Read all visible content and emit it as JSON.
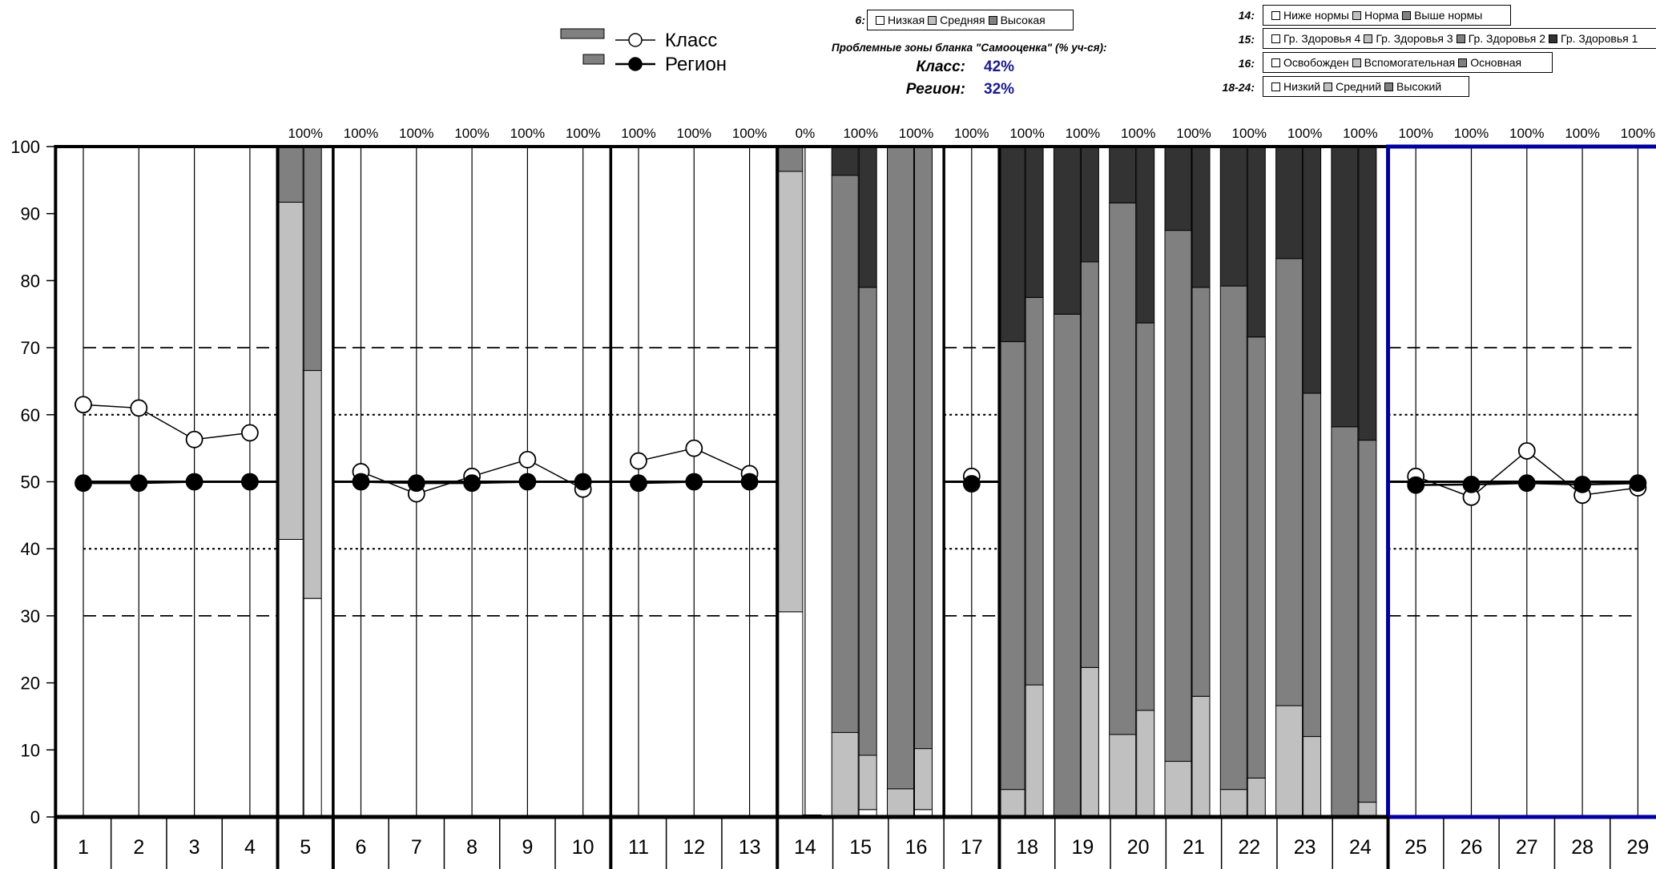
{
  "legend_main": {
    "class_label": "Класс",
    "region_label": "Регион"
  },
  "header": {
    "title": "Проблемные зоны бланка \"Самооценка\" (% уч-ся):",
    "class_label": "Класс:",
    "class_value": "42%",
    "region_label": "Регион:",
    "region_value": "32%"
  },
  "legend_groups": [
    {
      "key": "6:",
      "items": [
        "Низкая",
        "Средняя",
        "Высокая"
      ]
    },
    {
      "key": "14:",
      "items": [
        "Ниже нормы",
        "Норма",
        "Выше нормы"
      ]
    },
    {
      "key": "15:",
      "items": [
        "Гр. Здоровья 4",
        "Гр. Здоровья 3",
        "Гр. Здоровья 2",
        "Гр. Здоровья 1"
      ]
    },
    {
      "key": "16:",
      "items": [
        "Освобожден",
        "Вспомогательная",
        "Основная"
      ]
    },
    {
      "key": "18-24:",
      "items": [
        "Низкий",
        "Средний",
        "Высокий"
      ]
    }
  ],
  "colors": {
    "white": "#ffffff",
    "light": "#c0c0c0",
    "medium": "#808080",
    "dark": "#333333",
    "frame": "#000000",
    "blue_frame": "#00009c",
    "header_value": "#1a1a8c"
  },
  "chart_data": {
    "type": "bar",
    "ylim": [
      0,
      100
    ],
    "yticks": [
      0,
      10,
      20,
      30,
      40,
      50,
      60,
      70,
      80,
      90,
      100
    ],
    "reference_lines": {
      "dashed": [
        30,
        70
      ],
      "dotted": [
        40,
        60
      ],
      "solid": [
        50
      ]
    },
    "categories": [
      "1",
      "2",
      "3",
      "4",
      "5",
      "6",
      "7",
      "8",
      "9",
      "10",
      "11",
      "12",
      "13",
      "14",
      "15",
      "16",
      "17",
      "18",
      "19",
      "20",
      "21",
      "22",
      "23",
      "24",
      "25",
      "26",
      "27",
      "28",
      "29"
    ],
    "top_labels": [
      "",
      "",
      "",
      "",
      "100%",
      "100%",
      "100%",
      "100%",
      "100%",
      "100%",
      "100%",
      "100%",
      "100%",
      "0%",
      "100%",
      "100%",
      "100%",
      "100%",
      "100%",
      "100%",
      "100%",
      "100%",
      "100%",
      "100%",
      "100%",
      "100%",
      "100%",
      "100%",
      "100%"
    ],
    "line_series": [
      {
        "name": "Класс",
        "segments": [
          [
            [
              1,
              61.5
            ],
            [
              2,
              61
            ],
            [
              3,
              56.3
            ],
            [
              4,
              57.3
            ]
          ],
          [
            [
              6,
              51.5
            ],
            [
              7,
              48.2
            ],
            [
              8,
              50.8
            ],
            [
              9,
              53.3
            ],
            [
              10,
              48.9
            ]
          ],
          [
            [
              11,
              53.1
            ],
            [
              12,
              55
            ],
            [
              13,
              51.2
            ]
          ],
          [
            [
              17,
              50.8
            ]
          ],
          [
            [
              25,
              50.8
            ],
            [
              26,
              47.7
            ],
            [
              27,
              54.6
            ],
            [
              28,
              48
            ],
            [
              29,
              49.1
            ]
          ]
        ]
      },
      {
        "name": "Регион",
        "segments": [
          [
            [
              1,
              49.8
            ],
            [
              2,
              49.8
            ],
            [
              3,
              50
            ],
            [
              4,
              50
            ]
          ],
          [
            [
              6,
              50
            ],
            [
              7,
              49.8
            ],
            [
              8,
              49.8
            ],
            [
              9,
              50
            ],
            [
              10,
              50
            ]
          ],
          [
            [
              11,
              49.8
            ],
            [
              12,
              50
            ],
            [
              13,
              50
            ]
          ],
          [
            [
              17,
              49.7
            ]
          ],
          [
            [
              25,
              49.5
            ],
            [
              26,
              49.6
            ],
            [
              27,
              49.8
            ],
            [
              28,
              49.6
            ],
            [
              29,
              49.8
            ]
          ]
        ]
      }
    ],
    "stacked_bars": [
      {
        "category": "5",
        "class": [
          41.4,
          50.3,
          8.3
        ],
        "region": [
          32.6,
          34.0,
          33.4
        ]
      },
      {
        "category": "14",
        "class": [
          30.6,
          65.7,
          3.7
        ],
        "region": [
          0.3,
          0,
          0
        ]
      },
      {
        "category": "15",
        "class": [
          0,
          12.6,
          83.1,
          4.3
        ],
        "region": [
          1.1,
          8.1,
          69.8,
          21.0
        ]
      },
      {
        "category": "16",
        "class": [
          0,
          4.2,
          95.8
        ],
        "region": [
          1.1,
          9.1,
          89.8
        ]
      },
      {
        "category": "18",
        "class": [
          0,
          4.1,
          66.8,
          29.1
        ],
        "region": [
          0,
          19.7,
          57.8,
          22.5
        ]
      },
      {
        "category": "19",
        "class": [
          0,
          0,
          75,
          25
        ],
        "region": [
          0,
          22.3,
          60.5,
          17.2
        ]
      },
      {
        "category": "20",
        "class": [
          0,
          12.3,
          79.3,
          8.4
        ],
        "region": [
          0,
          15.9,
          57.8,
          26.3
        ]
      },
      {
        "category": "21",
        "class": [
          0,
          8.3,
          79.2,
          12.5
        ],
        "region": [
          0,
          18.0,
          61.0,
          21.0
        ]
      },
      {
        "category": "22",
        "class": [
          0,
          4.1,
          75.1,
          20.8
        ],
        "region": [
          0,
          5.8,
          65.8,
          28.4
        ]
      },
      {
        "category": "23",
        "class": [
          0,
          16.6,
          66.7,
          16.7
        ],
        "region": [
          0,
          12.0,
          51.2,
          36.8
        ]
      },
      {
        "category": "24",
        "class": [
          0,
          0,
          58.2,
          41.8
        ],
        "region": [
          0,
          2.2,
          54.0,
          43.8
        ]
      }
    ]
  }
}
